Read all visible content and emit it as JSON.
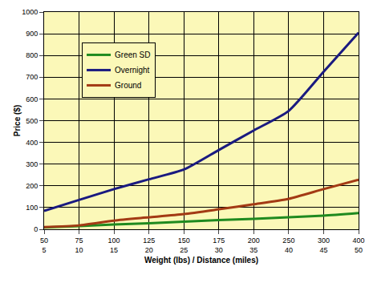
{
  "chart_data": {
    "type": "line",
    "x_label": "Weight (lbs) / Distance (miles)",
    "y_label": "Price ($)",
    "categories": [
      [
        50,
        5
      ],
      [
        75,
        10
      ],
      [
        100,
        15
      ],
      [
        125,
        20
      ],
      [
        150,
        25
      ],
      [
        175,
        30
      ],
      [
        200,
        35
      ],
      [
        250,
        40
      ],
      [
        300,
        45
      ],
      [
        400,
        50
      ]
    ],
    "series": [
      {
        "name": "Green SD",
        "color": "#1f8a1f",
        "values": [
          8,
          15,
          22,
          28,
          35,
          42,
          48,
          55,
          63,
          75
        ]
      },
      {
        "name": "Overnight",
        "color": "#1a1a80",
        "values": [
          85,
          135,
          185,
          230,
          275,
          365,
          455,
          545,
          725,
          905
        ]
      },
      {
        "name": "Ground",
        "color": "#a33a14",
        "values": [
          10,
          18,
          40,
          55,
          70,
          92,
          115,
          140,
          185,
          228
        ]
      }
    ],
    "ylim": [
      0,
      1000
    ],
    "yticks": [
      0,
      100,
      200,
      300,
      400,
      500,
      600,
      700,
      800,
      900,
      1000
    ],
    "grid": true,
    "legend": "upper left"
  }
}
